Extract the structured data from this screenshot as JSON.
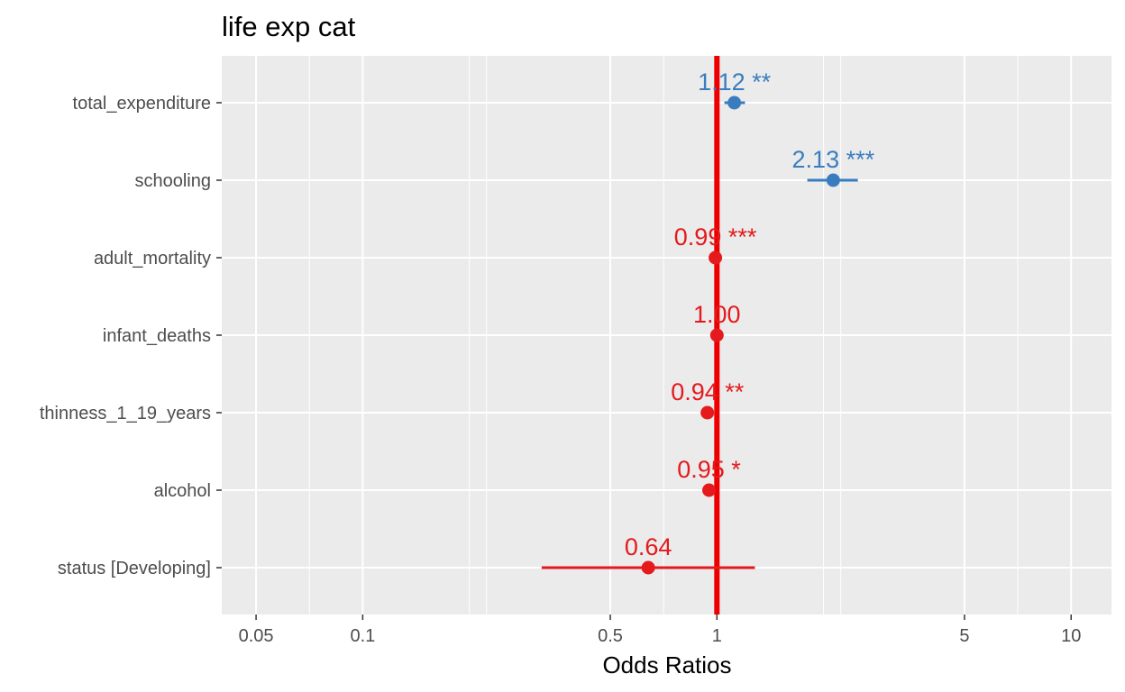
{
  "chart_data": {
    "type": "scatter",
    "title": "life exp cat",
    "xlabel": "Odds Ratios",
    "ylabel": "",
    "x_scale": "log",
    "xlim": [
      0.04,
      13
    ],
    "x_ticks": [
      {
        "value": 0.05,
        "label": "0.05"
      },
      {
        "value": 0.1,
        "label": "0.1"
      },
      {
        "value": 0.5,
        "label": "0.5"
      },
      {
        "value": 1,
        "label": "1"
      },
      {
        "value": 5,
        "label": "5"
      },
      {
        "value": 10,
        "label": "10"
      }
    ],
    "x_minor_ticks": [
      0.2,
      2
    ],
    "reference_line": {
      "x": 1,
      "color": "#ee0000"
    },
    "grid": true,
    "colors": {
      "positive": "#3a7dbf",
      "negative": "#e41a1c",
      "panel": "#ebebeb",
      "grid": "#ffffff"
    },
    "terms": [
      {
        "name": "total_expenditure",
        "estimate": 1.12,
        "ci_low": 1.05,
        "ci_high": 1.2,
        "label": "1.12 **",
        "direction": "positive"
      },
      {
        "name": "schooling",
        "estimate": 2.13,
        "ci_low": 1.8,
        "ci_high": 2.5,
        "label": "2.13 ***",
        "direction": "positive"
      },
      {
        "name": "adult_mortality",
        "estimate": 0.99,
        "ci_low": 0.985,
        "ci_high": 0.995,
        "label": "0.99 ***",
        "direction": "negative"
      },
      {
        "name": "infant_deaths",
        "estimate": 1.0,
        "ci_low": 0.995,
        "ci_high": 1.005,
        "label": "1.00",
        "direction": "negative"
      },
      {
        "name": "thinness_1_19_years",
        "estimate": 0.94,
        "ci_low": 0.9,
        "ci_high": 0.98,
        "label": "0.94 **",
        "direction": "negative"
      },
      {
        "name": "alcohol",
        "estimate": 0.95,
        "ci_low": 0.91,
        "ci_high": 0.99,
        "label": "0.95 *",
        "direction": "negative"
      },
      {
        "name": "status [Developing]",
        "estimate": 0.64,
        "ci_low": 0.32,
        "ci_high": 1.28,
        "label": "0.64",
        "direction": "negative"
      }
    ]
  }
}
